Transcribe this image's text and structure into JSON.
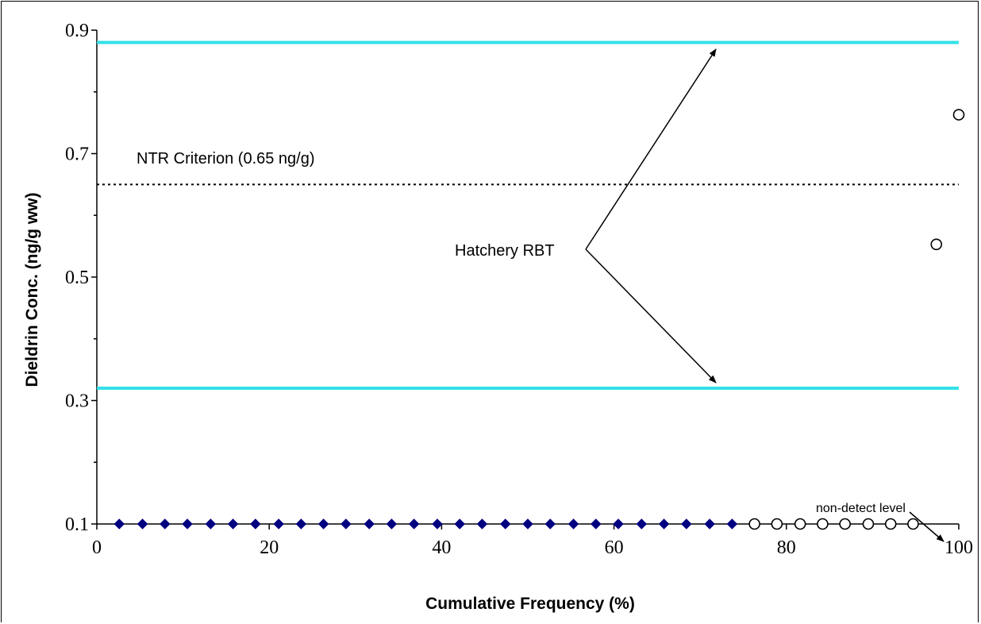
{
  "chart_data": {
    "type": "scatter",
    "xlabel": "Cumulative Frequency (%)",
    "ylabel": "Dieldrin Conc. (ng/g ww)",
    "xlim": [
      0,
      100
    ],
    "ylim": [
      0.1,
      0.9
    ],
    "x_ticks": [
      "0",
      "20",
      "40",
      "60",
      "80",
      "100"
    ],
    "y_ticks": [
      "0.1",
      "0.3",
      "0.5",
      "0.7",
      "0.9"
    ],
    "grid": false,
    "series": [
      {
        "marker": "filled-diamond",
        "color": "#000080",
        "points": [
          [
            2.6,
            0.1
          ],
          [
            5.3,
            0.1
          ],
          [
            7.9,
            0.1
          ],
          [
            10.5,
            0.1
          ],
          [
            13.2,
            0.1
          ],
          [
            15.8,
            0.1
          ],
          [
            18.4,
            0.1
          ],
          [
            21.1,
            0.1
          ],
          [
            23.7,
            0.1
          ],
          [
            26.3,
            0.1
          ],
          [
            28.9,
            0.1
          ],
          [
            31.6,
            0.1
          ],
          [
            34.2,
            0.1
          ],
          [
            36.8,
            0.1
          ],
          [
            39.5,
            0.1
          ],
          [
            42.1,
            0.1
          ],
          [
            44.7,
            0.1
          ],
          [
            47.4,
            0.1
          ],
          [
            50.0,
            0.1
          ],
          [
            52.6,
            0.1
          ],
          [
            55.3,
            0.1
          ],
          [
            57.9,
            0.1
          ],
          [
            60.5,
            0.1
          ],
          [
            63.2,
            0.1
          ],
          [
            65.8,
            0.1
          ],
          [
            68.4,
            0.1
          ],
          [
            71.1,
            0.1
          ],
          [
            73.7,
            0.1
          ]
        ]
      },
      {
        "marker": "open-circle",
        "color": "#000000",
        "points": [
          [
            76.3,
            0.1
          ],
          [
            78.9,
            0.1
          ],
          [
            81.6,
            0.1
          ],
          [
            84.2,
            0.1
          ],
          [
            86.8,
            0.1
          ],
          [
            89.5,
            0.1
          ],
          [
            92.1,
            0.1
          ],
          [
            94.7,
            0.1
          ],
          [
            97.4,
            0.553
          ],
          [
            100.0,
            0.763
          ]
        ]
      }
    ],
    "reference_lines": [
      {
        "y": 0.88,
        "color": "#33e0e8",
        "style": "solid"
      },
      {
        "y": 0.32,
        "color": "#33e0e8",
        "style": "solid"
      },
      {
        "y": 0.65,
        "color": "#000000",
        "style": "dotted"
      }
    ],
    "annotations": {
      "ntr": "NTR Criterion (0.65 ng/g)",
      "hatchery": "Hatchery RBT",
      "nondetect": "non-detect level"
    }
  }
}
